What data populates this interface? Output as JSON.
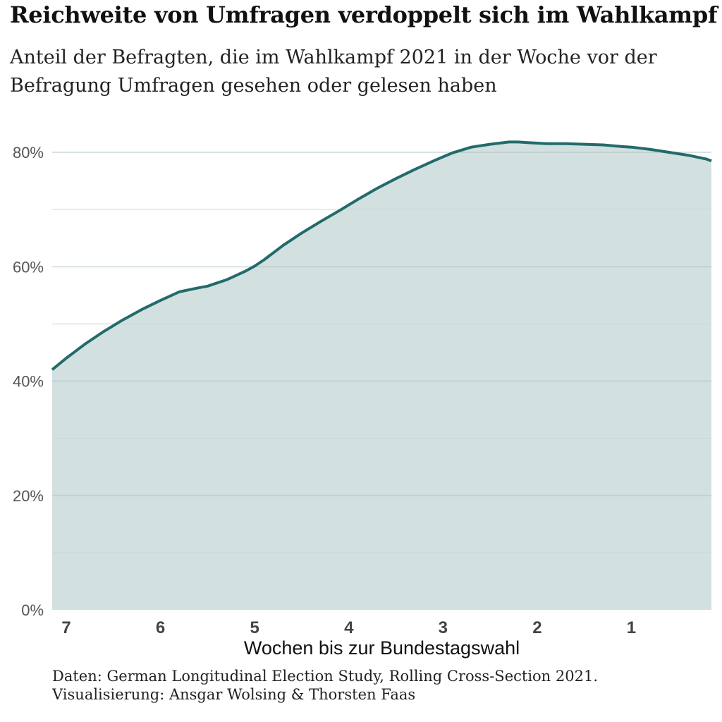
{
  "header": {
    "title": "Reichweite von Umfragen verdoppelt sich im Wahlkampf",
    "subtitle": "Anteil der Befragten, die im Wahlkampf 2021 in der Woche vor der Befragung Umfragen gesehen oder gelesen haben"
  },
  "caption": {
    "line1": "Daten: German Longitudinal Election Study, Rolling Cross-Section 2021.",
    "line2": "Visualisierung: Ansgar Wolsing & Thorsten Faas"
  },
  "colors": {
    "line": "#236b6b",
    "area": "#d3e0e0",
    "grid": "#e6e6e6"
  },
  "chart_data": {
    "type": "area",
    "xlabel": "Wochen bis zur Bundestagswahl",
    "ylabel": "",
    "x_tick_labels": [
      "7",
      "6",
      "5",
      "4",
      "3",
      "2",
      "1"
    ],
    "x_ticks": [
      7,
      6,
      5,
      4,
      3,
      2,
      1
    ],
    "x_reversed": true,
    "xlim": [
      7.15,
      0.15
    ],
    "y_tick_labels": [
      "0%",
      "20%",
      "40%",
      "60%",
      "80%"
    ],
    "y_ticks": [
      0,
      20,
      40,
      60,
      80
    ],
    "ylim": [
      0,
      80
    ],
    "grid": true,
    "series": [
      {
        "x": [
          7.15,
          7.0,
          6.8,
          6.6,
          6.4,
          6.2,
          6.0,
          5.8,
          5.6,
          5.5,
          5.3,
          5.1,
          5.0,
          4.9,
          4.7,
          4.5,
          4.3,
          4.1,
          3.9,
          3.7,
          3.5,
          3.3,
          3.1,
          2.9,
          2.7,
          2.5,
          2.3,
          2.2,
          2.1,
          1.9,
          1.7,
          1.5,
          1.3,
          1.1,
          1.0,
          0.8,
          0.6,
          0.4,
          0.2,
          0.15
        ],
        "y": [
          42.0,
          44.0,
          46.5,
          48.7,
          50.7,
          52.5,
          54.1,
          55.6,
          56.3,
          56.6,
          57.7,
          59.2,
          60.1,
          61.2,
          63.7,
          65.9,
          67.9,
          69.8,
          71.8,
          73.7,
          75.4,
          77.0,
          78.5,
          79.9,
          80.9,
          81.4,
          81.8,
          81.8,
          81.7,
          81.5,
          81.5,
          81.4,
          81.3,
          81.0,
          80.9,
          80.5,
          80.0,
          79.5,
          78.8,
          78.5
        ]
      }
    ]
  }
}
